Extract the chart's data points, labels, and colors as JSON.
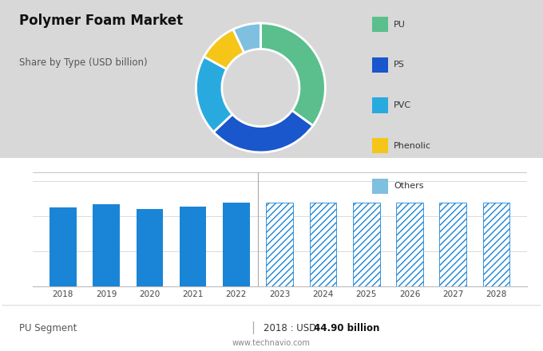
{
  "title": "Polymer Foam Market",
  "subtitle": "Share by Type (USD billion)",
  "background_color": "#d8d8d8",
  "bar_bg_color": "#ffffff",
  "donut_labels": [
    "PU",
    "PS",
    "PVC",
    "Phenolic",
    "Others"
  ],
  "donut_values": [
    35,
    28,
    20,
    10,
    7
  ],
  "donut_colors": [
    "#5abf8c",
    "#1a56cc",
    "#29aadf",
    "#f5c518",
    "#7fbfdf"
  ],
  "bar_years_solid": [
    2018,
    2019,
    2020,
    2021,
    2022
  ],
  "bar_values_solid": [
    44.9,
    46.5,
    43.8,
    45.5,
    47.5
  ],
  "bar_color_solid": "#1a85d6",
  "bar_years_hatched": [
    2023,
    2024,
    2025,
    2026,
    2027,
    2028
  ],
  "bar_values_hatched": [
    47.5,
    47.5,
    47.5,
    47.5,
    47.5,
    47.5
  ],
  "bar_hatch_color": "#1a85d6",
  "bar_ylim": [
    0,
    65
  ],
  "footer_left": "PU Segment",
  "footer_right_label": "2018 : USD ",
  "footer_right_value": "44.90 billion",
  "footer_website": "www.technavio.com",
  "legend_colors": [
    "#5abf8c",
    "#1a56cc",
    "#29aadf",
    "#f5c518",
    "#7fbfdf"
  ],
  "legend_labels": [
    "PU",
    "PS",
    "PVC",
    "Phenolic",
    "Others"
  ]
}
